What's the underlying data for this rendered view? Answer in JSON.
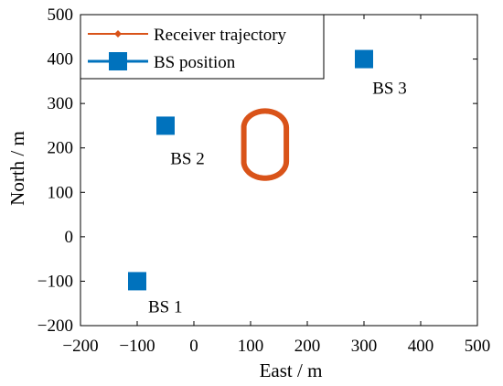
{
  "chart_data": {
    "type": "scatter",
    "xlabel": "East / m",
    "ylabel": "North / m",
    "xlim": [
      -200,
      500
    ],
    "ylim": [
      -200,
      500
    ],
    "xticks": [
      -200,
      -100,
      0,
      100,
      200,
      300,
      400,
      500
    ],
    "yticks": [
      -200,
      -100,
      0,
      100,
      200,
      300,
      400,
      500
    ],
    "xtick_labels": [
      "−200",
      "−100",
      "0",
      "100",
      "200",
      "300",
      "400",
      "500"
    ],
    "ytick_labels": [
      "−200",
      "−100",
      "0",
      "100",
      "200",
      "300",
      "400",
      "500"
    ],
    "grid": false,
    "legend_position": "top-left",
    "series": [
      {
        "name": "Receiver trajectory",
        "kind": "line-with-markers",
        "color": "#d95319",
        "shape": "stadium loop",
        "x_range": [
          88,
          163
        ],
        "y_range": [
          132,
          283
        ]
      },
      {
        "name": "BS position",
        "kind": "square-markers",
        "color": "#0072bd",
        "points": [
          {
            "label": "BS 1",
            "x": -100,
            "y": -100
          },
          {
            "label": "BS 2",
            "x": -50,
            "y": 250
          },
          {
            "label": "BS 3",
            "x": 300,
            "y": 400
          }
        ]
      }
    ]
  }
}
